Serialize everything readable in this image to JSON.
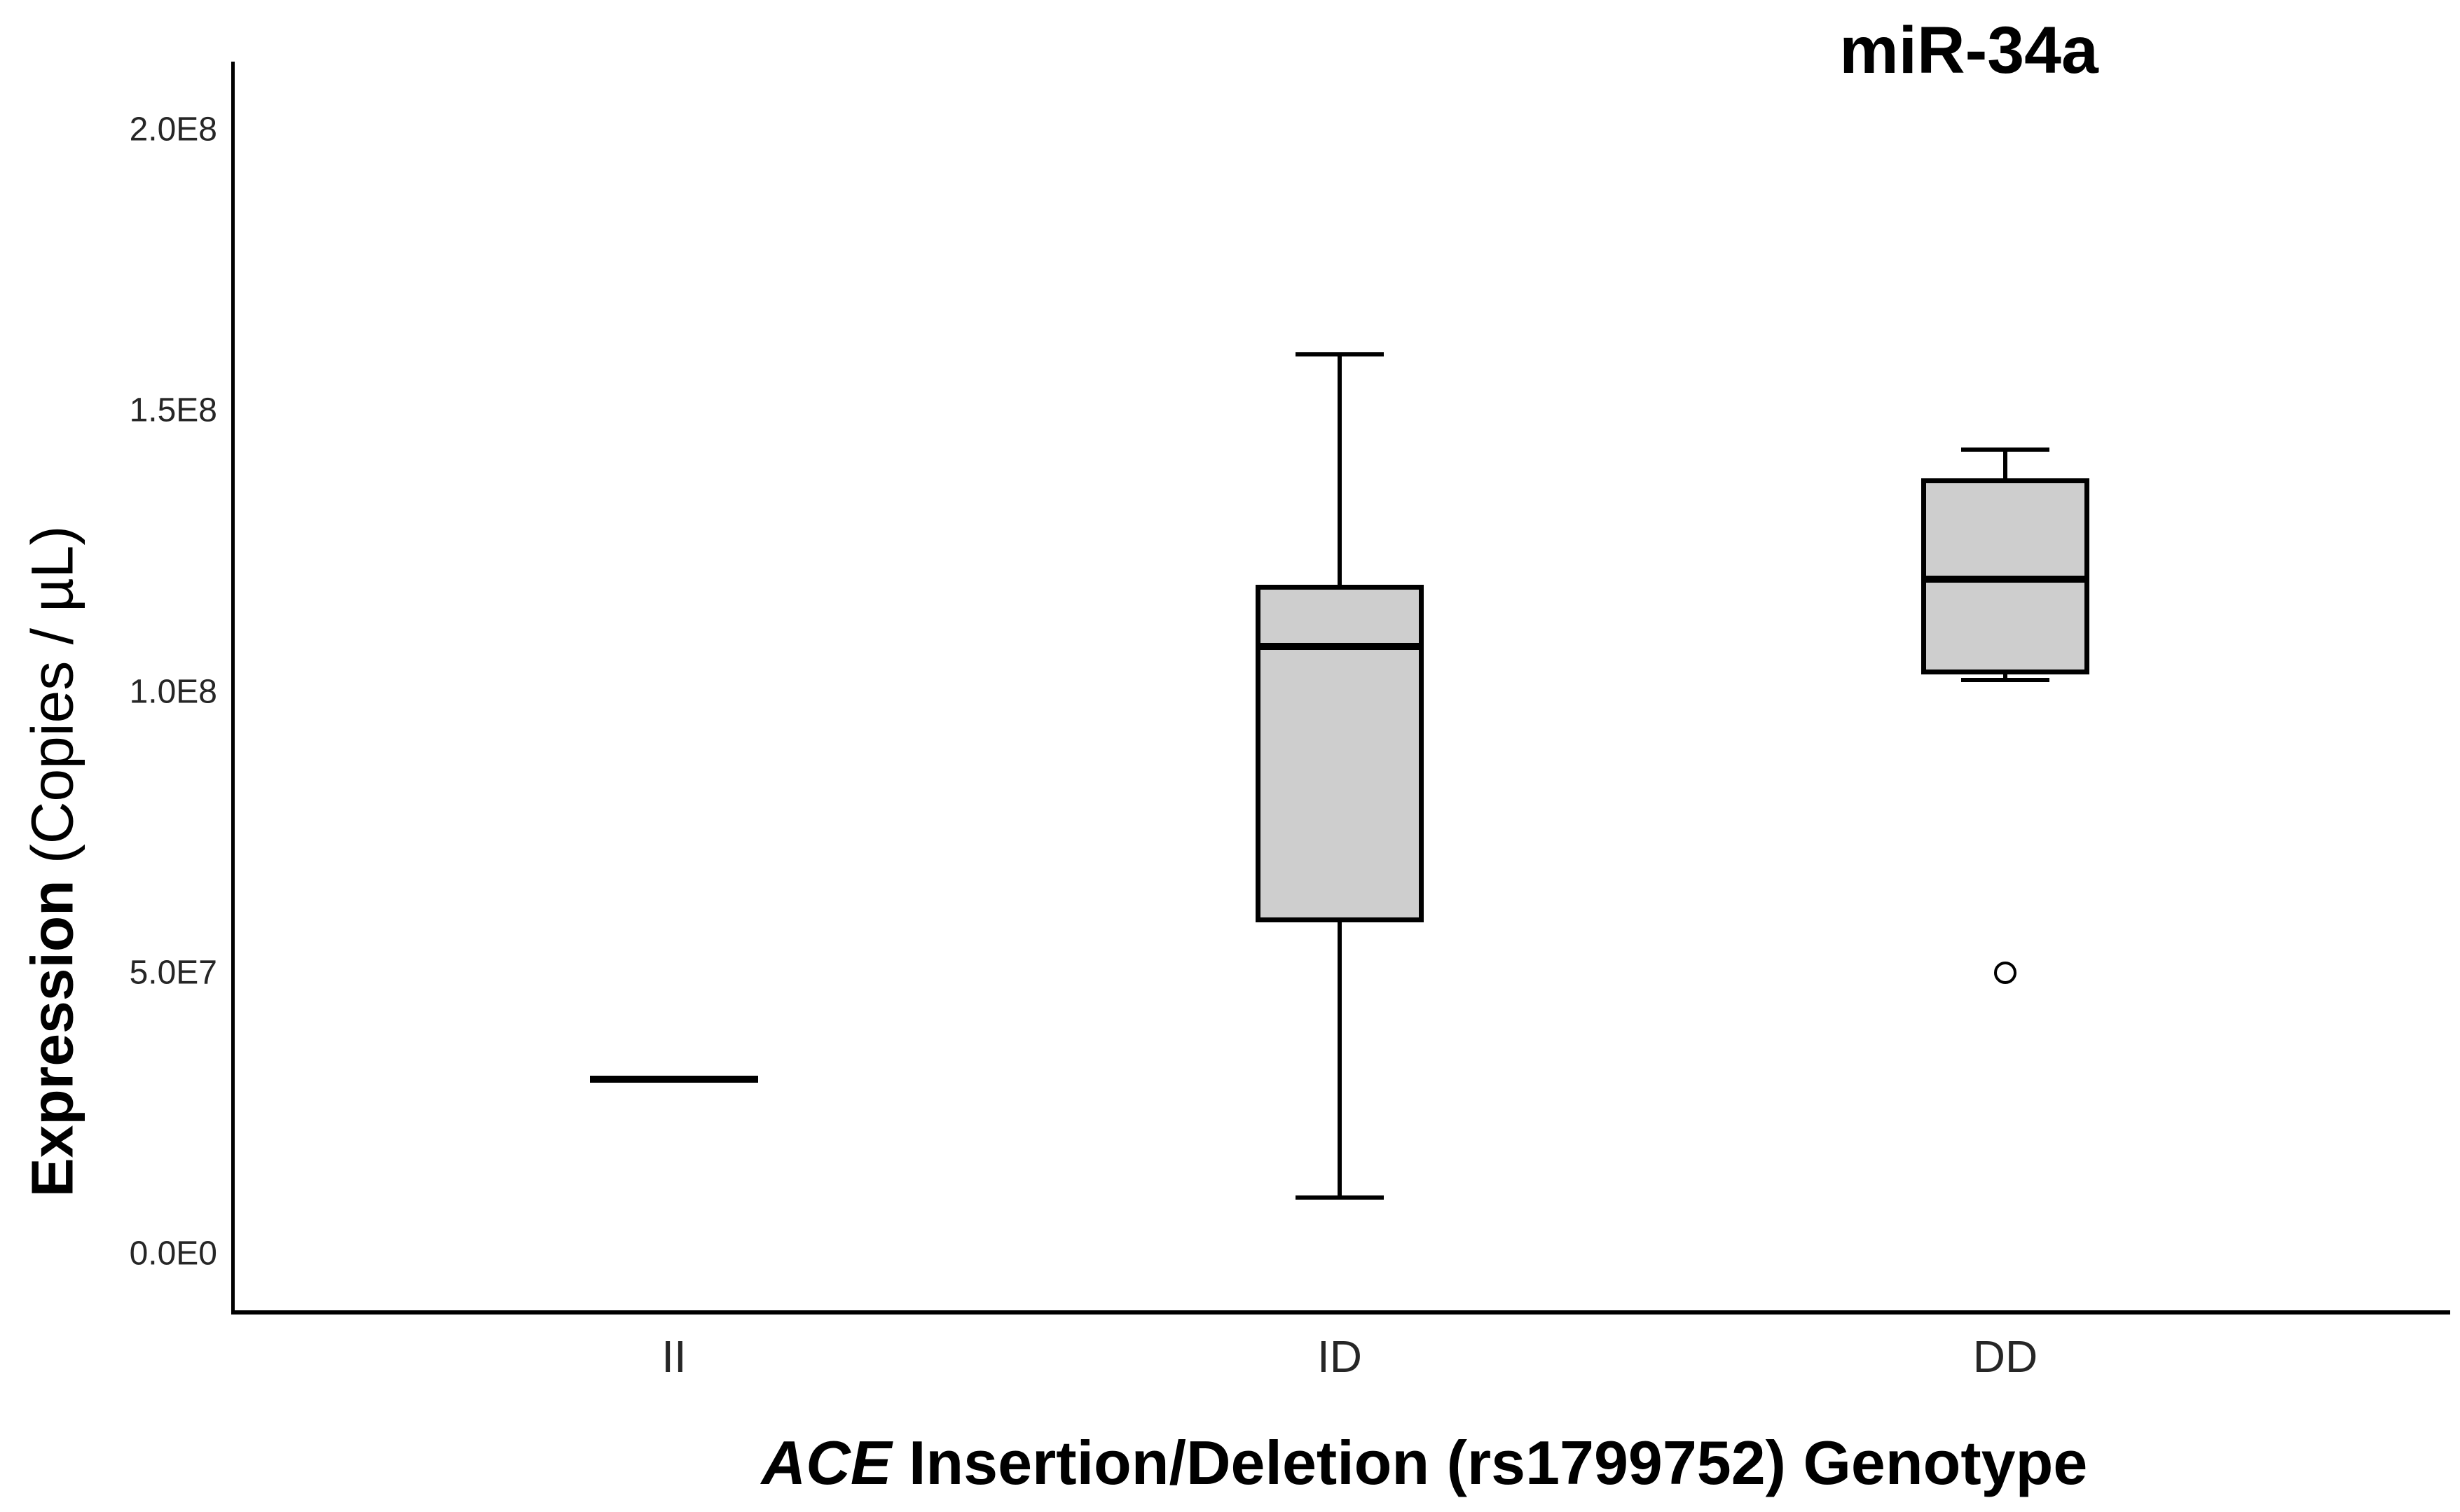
{
  "header": {
    "title": "miR-34a"
  },
  "axes": {
    "y_title_bold": "Expression",
    "y_title_rest": " (Copies / µL)",
    "x_title_italic": "ACE",
    "x_title_rest": " Insertion/Deletion (rs1799752) Genotype"
  },
  "colors": {
    "box_fill": "#cecece",
    "line": "#000000",
    "tick_text": "#262626",
    "background": "#ffffff"
  },
  "chart_data": {
    "type": "box",
    "title": "miR-34a",
    "xlabel": "ACE Insertion/Deletion (rs1799752) Genotype",
    "ylabel": "Expression (Copies / µL)",
    "ylim": [
      0,
      210000000
    ],
    "grid": false,
    "legend": null,
    "y_ticks": [
      {
        "value": 0,
        "label": "0.0E0"
      },
      {
        "value": 50000000,
        "label": "5.0E7"
      },
      {
        "value": 100000000,
        "label": "1.0E8"
      },
      {
        "value": 150000000,
        "label": "1.5E8"
      },
      {
        "value": 200000000,
        "label": "2.0E8"
      }
    ],
    "categories": [
      "II",
      "ID",
      "DD"
    ],
    "groups": [
      {
        "category": "II",
        "whisker_low": 31000000,
        "q1": 31000000,
        "median": 31000000,
        "q3": 31000000,
        "whisker_high": 31000000,
        "outliers": []
      },
      {
        "category": "ID",
        "whisker_low": 10000000,
        "q1": 59000000,
        "median": 108000000,
        "q3": 119000000,
        "whisker_high": 160000000,
        "outliers": []
      },
      {
        "category": "DD",
        "whisker_low": 102000000,
        "q1": 103000000,
        "median": 120000000,
        "q3": 138000000,
        "whisker_high": 143000000,
        "outliers": [
          50000000
        ]
      }
    ]
  }
}
